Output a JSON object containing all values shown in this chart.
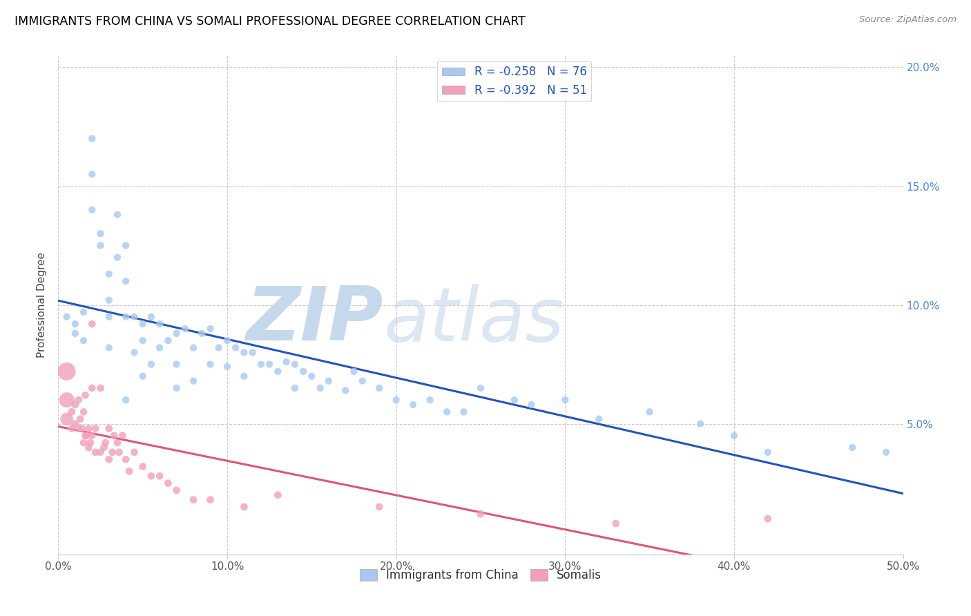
{
  "title": "IMMIGRANTS FROM CHINA VS SOMALI PROFESSIONAL DEGREE CORRELATION CHART",
  "source": "Source: ZipAtlas.com",
  "ylabel": "Professional Degree",
  "xlim": [
    0.0,
    0.5
  ],
  "ylim": [
    -0.005,
    0.205
  ],
  "xtick_labels": [
    "0.0%",
    "10.0%",
    "20.0%",
    "30.0%",
    "40.0%",
    "50.0%"
  ],
  "xtick_values": [
    0.0,
    0.1,
    0.2,
    0.3,
    0.4,
    0.5
  ],
  "ytick_labels": [
    "5.0%",
    "10.0%",
    "15.0%",
    "20.0%"
  ],
  "ytick_values": [
    0.05,
    0.1,
    0.15,
    0.2
  ],
  "china_color": "#a8c8f0",
  "china_line_color": "#2255bb",
  "somali_color": "#f0a0b8",
  "somali_line_color": "#e05575",
  "china_R": -0.258,
  "china_N": 76,
  "somali_R": -0.392,
  "somali_N": 51,
  "watermark_zip": "ZIP",
  "watermark_atlas": "atlas",
  "watermark_color": "#c5d8ec",
  "china_x": [
    0.005,
    0.01,
    0.01,
    0.015,
    0.015,
    0.02,
    0.02,
    0.02,
    0.025,
    0.025,
    0.03,
    0.03,
    0.03,
    0.03,
    0.035,
    0.035,
    0.04,
    0.04,
    0.04,
    0.04,
    0.045,
    0.045,
    0.05,
    0.05,
    0.05,
    0.055,
    0.055,
    0.06,
    0.06,
    0.065,
    0.07,
    0.07,
    0.07,
    0.075,
    0.08,
    0.08,
    0.085,
    0.09,
    0.09,
    0.095,
    0.1,
    0.1,
    0.105,
    0.11,
    0.11,
    0.115,
    0.12,
    0.125,
    0.13,
    0.135,
    0.14,
    0.14,
    0.145,
    0.15,
    0.155,
    0.16,
    0.17,
    0.175,
    0.18,
    0.19,
    0.2,
    0.21,
    0.22,
    0.23,
    0.24,
    0.25,
    0.27,
    0.28,
    0.3,
    0.32,
    0.35,
    0.38,
    0.4,
    0.42,
    0.47,
    0.49
  ],
  "china_y": [
    0.095,
    0.092,
    0.088,
    0.097,
    0.085,
    0.155,
    0.17,
    0.14,
    0.13,
    0.125,
    0.095,
    0.113,
    0.102,
    0.082,
    0.138,
    0.12,
    0.125,
    0.11,
    0.095,
    0.06,
    0.095,
    0.08,
    0.092,
    0.085,
    0.07,
    0.095,
    0.075,
    0.092,
    0.082,
    0.085,
    0.088,
    0.075,
    0.065,
    0.09,
    0.082,
    0.068,
    0.088,
    0.09,
    0.075,
    0.082,
    0.085,
    0.074,
    0.082,
    0.08,
    0.07,
    0.08,
    0.075,
    0.075,
    0.072,
    0.076,
    0.075,
    0.065,
    0.072,
    0.07,
    0.065,
    0.068,
    0.064,
    0.072,
    0.068,
    0.065,
    0.06,
    0.058,
    0.06,
    0.055,
    0.055,
    0.065,
    0.06,
    0.058,
    0.06,
    0.052,
    0.055,
    0.05,
    0.045,
    0.038,
    0.04,
    0.038
  ],
  "somali_x": [
    0.005,
    0.005,
    0.005,
    0.008,
    0.008,
    0.01,
    0.01,
    0.012,
    0.012,
    0.013,
    0.014,
    0.015,
    0.015,
    0.016,
    0.016,
    0.017,
    0.018,
    0.018,
    0.019,
    0.02,
    0.02,
    0.02,
    0.022,
    0.022,
    0.025,
    0.025,
    0.027,
    0.028,
    0.03,
    0.03,
    0.032,
    0.033,
    0.035,
    0.036,
    0.038,
    0.04,
    0.042,
    0.045,
    0.05,
    0.055,
    0.06,
    0.065,
    0.07,
    0.08,
    0.09,
    0.11,
    0.13,
    0.19,
    0.25,
    0.33,
    0.42
  ],
  "somali_y": [
    0.072,
    0.06,
    0.052,
    0.055,
    0.048,
    0.058,
    0.05,
    0.06,
    0.048,
    0.052,
    0.048,
    0.055,
    0.042,
    0.062,
    0.045,
    0.045,
    0.048,
    0.04,
    0.042,
    0.092,
    0.065,
    0.045,
    0.048,
    0.038,
    0.065,
    0.038,
    0.04,
    0.042,
    0.048,
    0.035,
    0.038,
    0.045,
    0.042,
    0.038,
    0.045,
    0.035,
    0.03,
    0.038,
    0.032,
    0.028,
    0.028,
    0.025,
    0.022,
    0.018,
    0.018,
    0.015,
    0.02,
    0.015,
    0.012,
    0.008,
    0.01
  ],
  "somali_sizes_base": 60,
  "somali_large_indices": [
    0,
    1,
    2
  ],
  "somali_large_sizes": [
    350,
    250,
    180
  ],
  "china_size": 55
}
